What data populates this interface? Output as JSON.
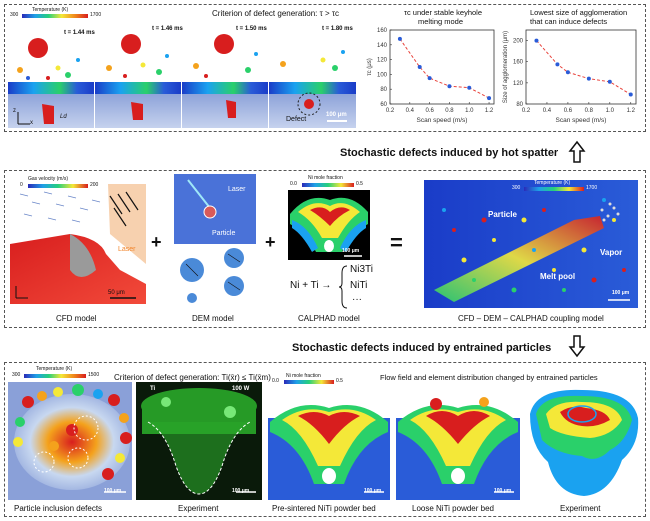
{
  "top": {
    "colorbar_title": "Temperature (K)",
    "colorbar_min": "300",
    "colorbar_max": "1700",
    "criterion": "Criterion of defect generation: τ > τc",
    "times": [
      "t = 1.44 ms",
      "t = 1.46 ms",
      "t = 1.50 ms",
      "t = 1.80 ms"
    ],
    "defect_label": "Defect",
    "scale_label": "100 μm",
    "ld_label": "Ld",
    "axis_z": "z",
    "axis_x": "x"
  },
  "chart_left": {
    "title_line1": "τc under stable keyhole",
    "title_line2": "melting mode"
  },
  "chart_right": {
    "title_line1": "Lowest size of agglomeration",
    "title_line2": "that can induce defects"
  },
  "chart_data": [
    {
      "type": "line",
      "title": "τc under stable keyhole melting mode",
      "xlabel": "Scan speed (m/s)",
      "ylabel": "τc (μs)",
      "x": [
        0.3,
        0.5,
        0.6,
        0.8,
        1.0,
        1.2
      ],
      "values": [
        148,
        110,
        95,
        84,
        82,
        68
      ],
      "xticks": [
        "0.2",
        "0.4",
        "0.6",
        "0.8",
        "1.0",
        "1.2"
      ],
      "yticks": [
        "60",
        "80",
        "100",
        "120",
        "140",
        "160"
      ],
      "xlim": [
        0.2,
        1.25
      ],
      "ylim": [
        60,
        160
      ],
      "color": "#e8413a"
    },
    {
      "type": "line",
      "title": "Lowest size of agglomeration that can induce defects",
      "xlabel": "Scan speed (m/s)",
      "ylabel": "Size of agglomeration (μm)",
      "x": [
        0.3,
        0.5,
        0.6,
        0.8,
        1.0,
        1.2
      ],
      "values": [
        200,
        155,
        140,
        128,
        122,
        98
      ],
      "xticks": [
        "0.2",
        "0.4",
        "0.6",
        "0.8",
        "1.0",
        "1.2"
      ],
      "yticks": [
        "80",
        "120",
        "160",
        "200"
      ],
      "xlim": [
        0.2,
        1.25
      ],
      "ylim": [
        80,
        220
      ],
      "color": "#e8413a"
    }
  ],
  "hot_spatter_label": "Stochastic defects induced by hot spatter",
  "middle": {
    "gas_velocity_title": "Gas velocity (m/s)",
    "gas_min": "0",
    "gas_max": "200",
    "laser": "Laser",
    "particle": "Particle",
    "cfd_scale": "50 μm",
    "cfd_model": "CFD model",
    "dem_model": "DEM model",
    "ni_mole_fraction": "Ni mole fraction",
    "ni_min": "0.0",
    "ni_max": "0.5",
    "calphad_scale": "100 μm",
    "reaction_left": "Ni + Ti →",
    "products": [
      "Ni3Ti",
      "NiTi",
      "···"
    ],
    "calphad_model": "CALPHAD model",
    "temp_title": "Temperature (K)",
    "temp_min": "300",
    "temp_max": "1700",
    "coupling_particle": "Particle",
    "coupling_vapor": "Vapor",
    "coupling_melt_pool": "Melt pool",
    "coupling_scale": "100 μm",
    "coupling_model": "CFD – DEM – CALPHAD coupling model",
    "plus": "+",
    "equals": "="
  },
  "entrained_label": "Stochastic defects induced by entrained particles",
  "bottom": {
    "temp_title": "Temperature (K)",
    "temp_min": "300",
    "temp_max": "1500",
    "criterion": "Criterion of defect generation: Ti(x̄r) ≤ Ti(x̄m)",
    "flow_text": "Flow field and element distribution changed by entrained particles",
    "ni_mole_fraction": "Ni mole fraction",
    "ni_min": "0.0",
    "ni_max": "0.5",
    "power": "100 W",
    "ti_label": "Ti",
    "scale": "100 μm",
    "captions": [
      "Particle inclusion defects",
      "Experiment",
      "Pre-sintered NiTi powder bed",
      "Loose NiTi powder bed",
      "Experiment"
    ]
  }
}
